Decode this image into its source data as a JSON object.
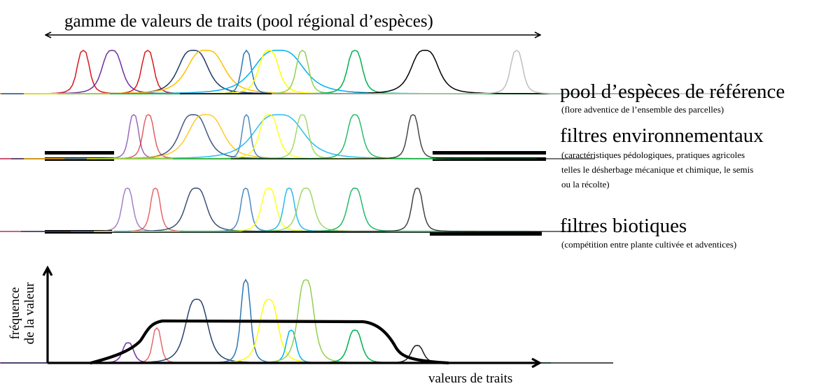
{
  "header": {
    "range_label": "gamme de valeurs de traits (pool régional d’espèces)"
  },
  "levels": [
    {
      "title": "pool d’espèces de référence",
      "subtitle_lines": [
        "(flore adventice de l’ensemble des parcelles)"
      ]
    },
    {
      "title": "filtres environnementaux",
      "subtitle_lines": [
        "(caractéristiques pédologiques, pratiques agricoles",
        "telles le désherbage mécanique et chimique, le semis",
        "ou la récolte)"
      ]
    },
    {
      "title": "filtres biotiques",
      "subtitle_lines": [
        "(compétition entre plante cultivée et adventices)"
      ]
    }
  ],
  "axes": {
    "y_label_lines": [
      "fréquence",
      "de la valeur"
    ],
    "x_label": "valeurs de traits"
  },
  "colors": {
    "red": "#d7191c",
    "purple": "#7030a0",
    "navy": "#1f3864",
    "orange": "#ffc000",
    "blue": "#2e75b6",
    "yellow": "#ffff00",
    "cyan": "#00b0f0",
    "lightgreen": "#92d050",
    "green": "#00b050",
    "black": "#000000",
    "gray": "#bfbfbf"
  },
  "rows": [
    {
      "name": "reference-pool",
      "species": [
        "red",
        "purple",
        "red",
        "navy",
        "orange",
        "blue",
        "cyan",
        "yellow",
        "lightgreen",
        "green",
        "black",
        "gray"
      ]
    },
    {
      "name": "environmental-filter",
      "species": [
        "purple",
        "red",
        "navy",
        "orange",
        "blue",
        "cyan",
        "yellow",
        "lightgreen",
        "green",
        "black"
      ]
    },
    {
      "name": "biotic-filter",
      "species": [
        "purple",
        "red",
        "navy",
        "blue",
        "yellow",
        "cyan",
        "lightgreen",
        "green",
        "black"
      ]
    },
    {
      "name": "community-distribution",
      "species": [
        "purple",
        "red",
        "navy",
        "blue",
        "yellow",
        "cyan",
        "lightgreen",
        "green",
        "black"
      ]
    }
  ]
}
